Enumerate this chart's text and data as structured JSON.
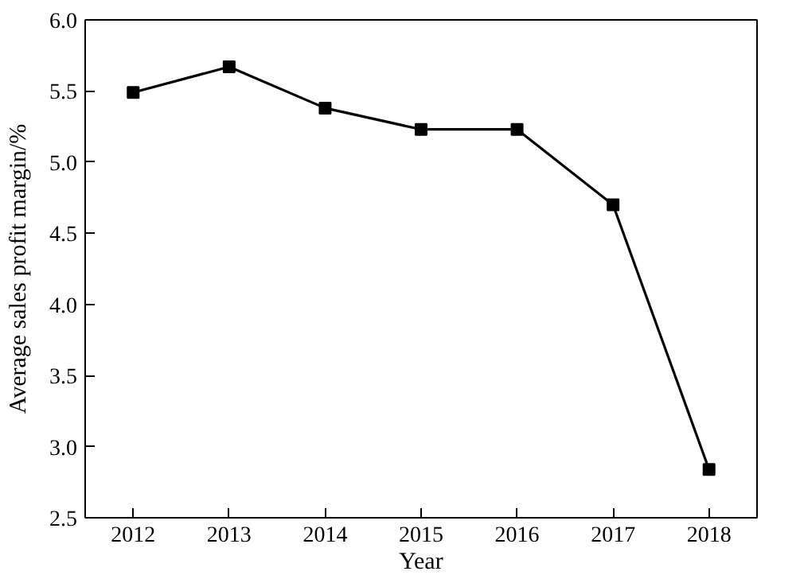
{
  "chart_data": {
    "type": "line",
    "xlabel": "Year",
    "ylabel": "Average sales profit margin/%",
    "x": [
      2012,
      2013,
      2014,
      2015,
      2016,
      2017,
      2018
    ],
    "values": [
      5.49,
      5.67,
      5.38,
      5.23,
      5.23,
      4.7,
      2.84
    ],
    "color": "#000000",
    "marker": "square",
    "line_style": "solid",
    "xlim": [
      2011.5,
      2018.5
    ],
    "xticks": [
      2012,
      2013,
      2014,
      2015,
      2016,
      2017,
      2018
    ],
    "ylim": [
      2.5,
      6.0
    ],
    "yticks": [
      {
        "value": 2.5,
        "label": "2.5"
      },
      {
        "value": 3.0,
        "label": "3.0"
      },
      {
        "value": 3.5,
        "label": "3.5"
      },
      {
        "value": 4.0,
        "label": "4.0"
      },
      {
        "value": 4.5,
        "label": "4.5"
      },
      {
        "value": 5.0,
        "label": "5.0"
      },
      {
        "value": 5.5,
        "label": "5.5"
      },
      {
        "value": 6.0,
        "label": "6.0"
      }
    ],
    "grid": false
  }
}
